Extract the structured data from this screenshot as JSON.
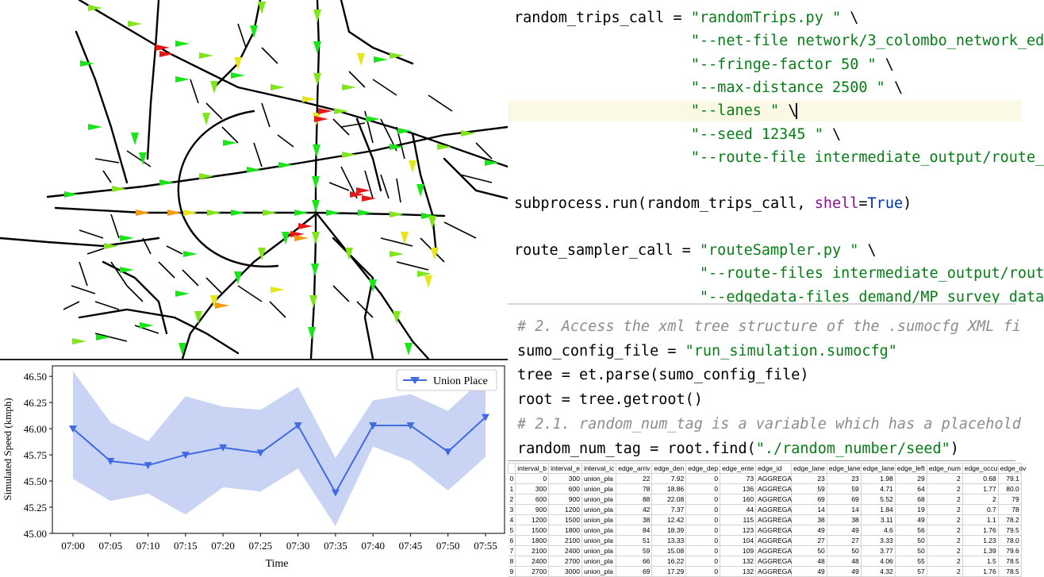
{
  "code_editor_top": {
    "lines": [
      {
        "parts": [
          [
            "plain",
            "random_trips_call = "
          ],
          [
            "str",
            "\"randomTrips.py \""
          ],
          [
            "plain",
            " \\"
          ]
        ]
      },
      {
        "parts": [
          [
            "plain",
            "                    "
          ],
          [
            "str",
            "\"--net-file network/3_colombo_network_ed"
          ]
        ]
      },
      {
        "parts": [
          [
            "plain",
            "                    "
          ],
          [
            "str",
            "\"--fringe-factor 50 \""
          ],
          [
            "plain",
            " \\"
          ]
        ]
      },
      {
        "parts": [
          [
            "plain",
            "                    "
          ],
          [
            "str",
            "\"--max-distance 2500 \""
          ],
          [
            "plain",
            " \\"
          ]
        ]
      },
      {
        "parts": [
          [
            "plain",
            "                    "
          ],
          [
            "str",
            "\"--lanes \""
          ],
          [
            "plain",
            " \\"
          ]
        ],
        "highlight": true,
        "caret": true
      },
      {
        "parts": [
          [
            "plain",
            "                    "
          ],
          [
            "str",
            "\"--seed 12345 \""
          ],
          [
            "plain",
            " \\"
          ]
        ]
      },
      {
        "parts": [
          [
            "plain",
            "                    "
          ],
          [
            "str",
            "\"--route-file intermediate_output/route_"
          ]
        ]
      },
      {
        "parts": []
      },
      {
        "parts": [
          [
            "plain",
            "subprocess.run(random_trips_call, "
          ],
          [
            "kw",
            "shell"
          ],
          [
            "plain",
            "="
          ],
          [
            "bool",
            "True"
          ],
          [
            "plain",
            ")"
          ]
        ]
      },
      {
        "parts": []
      },
      {
        "parts": [
          [
            "plain",
            "route_sampler_call = "
          ],
          [
            "str",
            "\"routeSampler.py \""
          ],
          [
            "plain",
            " \\"
          ]
        ]
      },
      {
        "parts": [
          [
            "plain",
            "                     "
          ],
          [
            "str",
            "\"--route-files intermediate_output/rout"
          ]
        ]
      },
      {
        "parts": [
          [
            "plain",
            "                     "
          ],
          [
            "str",
            "\"--edgedata-files demand/MP_survey_data"
          ]
        ]
      }
    ]
  },
  "code_editor_bottom": {
    "lines": [
      {
        "parts": [
          [
            "cm",
            "# 2. Access the xml tree structure of the .sumocfg XML fi"
          ]
        ]
      },
      {
        "parts": [
          [
            "plain",
            "sumo_config_file = "
          ],
          [
            "str",
            "\"run_simulation.sumocfg\""
          ]
        ]
      },
      {
        "parts": [
          [
            "plain",
            "tree = et.parse(sumo_config_file)"
          ]
        ]
      },
      {
        "parts": [
          [
            "plain",
            "root = tree.getroot()"
          ]
        ]
      },
      {
        "parts": [
          [
            "cm",
            "# 2.1. random_num_tag is a variable which has a placehold"
          ]
        ]
      },
      {
        "parts": [
          [
            "plain",
            "random_num_tag = root.find("
          ],
          [
            "str",
            "\"./random_number/seed\""
          ],
          [
            "plain",
            ")"
          ]
        ]
      }
    ]
  },
  "spreadsheet": {
    "headers": [
      "",
      "interval_b",
      "interval_e",
      "interval_ic",
      "edge_arriv",
      "edge_den",
      "edge_dep",
      "edge_ente",
      "edge_id",
      "edge_lane",
      "edge_lane",
      "edge_lane",
      "edge_left",
      "edge_num",
      "edge_occu",
      "edge_ov"
    ],
    "rows": [
      [
        "0",
        "0",
        "300",
        "union_pla",
        "22",
        "7.92",
        "0",
        "73",
        "AGGREGA",
        "23",
        "23",
        "1.98",
        "29",
        "2",
        "0.68",
        "79.1"
      ],
      [
        "1",
        "300",
        "600",
        "union_pla",
        "78",
        "18.86",
        "0",
        "136",
        "AGGREGA",
        "59",
        "59",
        "4.71",
        "64",
        "2",
        "1.77",
        "80.0"
      ],
      [
        "2",
        "600",
        "900",
        "union_pla",
        "88",
        "22.08",
        "0",
        "160",
        "AGGREGA",
        "69",
        "69",
        "5.52",
        "68",
        "2",
        "2",
        "79"
      ],
      [
        "3",
        "900",
        "1200",
        "union_pla",
        "42",
        "7.37",
        "0",
        "44",
        "AGGREGA",
        "14",
        "14",
        "1.84",
        "19",
        "2",
        "0.7",
        "78"
      ],
      [
        "4",
        "1200",
        "1500",
        "union_pla",
        "38",
        "12.42",
        "0",
        "115",
        "AGGREGA",
        "38",
        "38",
        "3.11",
        "49",
        "2",
        "1.1",
        "78.2"
      ],
      [
        "5",
        "1500",
        "1800",
        "union_pla",
        "84",
        "18.39",
        "0",
        "123",
        "AGGREGA",
        "49",
        "49",
        "4.6",
        "56",
        "2",
        "1.76",
        "79.5"
      ],
      [
        "6",
        "1800",
        "2100",
        "union_pla",
        "51",
        "13.33",
        "0",
        "104",
        "AGGREGA",
        "27",
        "27",
        "3.33",
        "50",
        "2",
        "1.23",
        "78.0"
      ],
      [
        "7",
        "2100",
        "2400",
        "union_pla",
        "59",
        "15.08",
        "0",
        "109",
        "AGGREGA",
        "50",
        "50",
        "3.77",
        "50",
        "2",
        "1.39",
        "79.6"
      ],
      [
        "8",
        "2400",
        "2700",
        "union_pla",
        "66",
        "16.22",
        "0",
        "132",
        "AGGREGA",
        "48",
        "48",
        "4.06",
        "55",
        "2",
        "1.5",
        "78.5"
      ],
      [
        "9",
        "2700",
        "3000",
        "union_pla",
        "69",
        "17.29",
        "0",
        "132",
        "AGGREGA",
        "49",
        "49",
        "4.32",
        "57",
        "2",
        "1.76",
        "78.5"
      ]
    ]
  },
  "chart_data": {
    "type": "line",
    "x": [
      "07:00",
      "07:05",
      "07:10",
      "07:15",
      "07:20",
      "07:25",
      "07:30",
      "07:35",
      "07:40",
      "07:45",
      "07:50",
      "07:55"
    ],
    "series": [
      {
        "name": "Union Place",
        "values": [
          46.0,
          45.69,
          45.65,
          45.75,
          45.82,
          45.77,
          46.03,
          45.39,
          46.03,
          46.03,
          45.78,
          46.11
        ]
      }
    ],
    "band_upper": [
      46.55,
      46.06,
      45.88,
      46.31,
      46.21,
      46.18,
      46.4,
      45.72,
      46.27,
      46.33,
      46.17,
      46.5
    ],
    "band_lower": [
      45.52,
      45.31,
      45.38,
      45.18,
      45.44,
      45.4,
      45.62,
      45.07,
      45.83,
      45.69,
      45.41,
      45.73
    ],
    "ylabel": "Simulated Speed (kmph)",
    "xlabel": "Time",
    "ylim": [
      45.0,
      46.6
    ],
    "yticks": [
      "45.00",
      "45.25",
      "45.50",
      "45.75",
      "46.00",
      "46.25",
      "46.50"
    ],
    "legend_position": "top-right",
    "line_color": "#4169e1",
    "band_color": "#c9d4f4"
  },
  "map": {
    "road_color": "#000000",
    "congestion_colors": [
      "#19e619",
      "#7fe619",
      "#e6e619",
      "#f59a0a",
      "#e61919"
    ]
  }
}
